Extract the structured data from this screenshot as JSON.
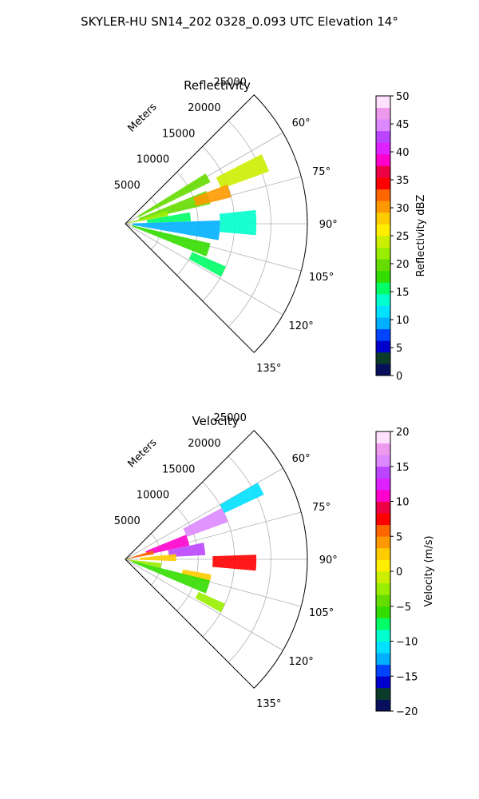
{
  "figure": {
    "title": "SKYLER-HU  SN14_202  0328_0.093 UTC Elevation 14°"
  },
  "chart_data": [
    {
      "type": "heatmap",
      "projection": "polar-sector",
      "title": "Reflectivity",
      "radial_axis_label": "Meters",
      "radial_ticks": [
        5000,
        10000,
        15000,
        20000,
        25000
      ],
      "radial_tick_labels": [
        "5000",
        "10000",
        "15000",
        "20000",
        "25000"
      ],
      "r_max": 25000,
      "azimuth_range_deg": [
        45,
        135
      ],
      "azimuth_ticks": [
        60,
        75,
        90,
        105,
        120,
        135
      ],
      "azimuth_tick_labels": [
        "60°",
        "75°",
        "90°",
        "105°",
        "120°",
        "135°"
      ],
      "grid": true,
      "colorbar": {
        "label": "Reflectivity dBZ",
        "range": [
          0,
          50
        ],
        "ticks": [
          0,
          5,
          10,
          15,
          20,
          25,
          30,
          35,
          40,
          45,
          50
        ],
        "tick_labels": [
          "0",
          "5",
          "10",
          "15",
          "20",
          "25",
          "30",
          "35",
          "40",
          "45",
          "50"
        ],
        "levels": 40
      },
      "echo_regions": [
        {
          "az_range": [
            58,
            64
          ],
          "r_range": [
            2000,
            13000
          ],
          "value": 20
        },
        {
          "az_range": [
            63,
            70
          ],
          "r_range": [
            14000,
            21000
          ],
          "value": 24
        },
        {
          "az_range": [
            68,
            77
          ],
          "r_range": [
            2000,
            12000
          ],
          "value": 19
        },
        {
          "az_range": [
            69,
            76
          ],
          "r_range": [
            10000,
            15000
          ],
          "value": 30
        },
        {
          "az_range": [
            73,
            80
          ],
          "r_range": [
            0,
            6000
          ],
          "value": 22
        },
        {
          "az_range": [
            80,
            88
          ],
          "r_range": [
            3000,
            9000
          ],
          "value": 16
        },
        {
          "az_range": [
            84,
            95
          ],
          "r_range": [
            13000,
            18000
          ],
          "value": 14
        },
        {
          "az_range": [
            88,
            100
          ],
          "r_range": [
            1000,
            13000
          ],
          "value": 10
        },
        {
          "az_range": [
            103,
            112
          ],
          "r_range": [
            1000,
            12000
          ],
          "value": 17
        },
        {
          "az_range": [
            113,
            119
          ],
          "r_range": [
            10000,
            15000
          ],
          "value": 16
        }
      ]
    },
    {
      "type": "heatmap",
      "projection": "polar-sector",
      "title": "Velocity",
      "radial_axis_label": "Meters",
      "radial_ticks": [
        5000,
        10000,
        15000,
        20000,
        25000
      ],
      "radial_tick_labels": [
        "5000",
        "10000",
        "15000",
        "20000",
        "25000"
      ],
      "r_max": 25000,
      "azimuth_range_deg": [
        45,
        135
      ],
      "azimuth_ticks": [
        60,
        75,
        90,
        105,
        120,
        135
      ],
      "azimuth_tick_labels": [
        "60°",
        "75°",
        "90°",
        "105°",
        "120°",
        "135°"
      ],
      "grid": true,
      "colorbar": {
        "label": "Velocity (m/s)",
        "range": [
          -20,
          20
        ],
        "ticks": [
          -20,
          -15,
          -10,
          -5,
          0,
          5,
          10,
          15,
          20
        ],
        "tick_labels": [
          "−20",
          "−15",
          "−10",
          "−5",
          "0",
          "5",
          "10",
          "15",
          "20"
        ],
        "levels": 40
      },
      "echo_regions": [
        {
          "az_range": [
            60,
            65
          ],
          "r_range": [
            15000,
            21000
          ],
          "value": -11
        },
        {
          "az_range": [
            62,
            70
          ],
          "r_range": [
            9000,
            15000
          ],
          "value": 16
        },
        {
          "az_range": [
            68,
            78
          ],
          "r_range": [
            3000,
            9000
          ],
          "value": 11
        },
        {
          "az_range": [
            72,
            80
          ],
          "r_range": [
            0,
            4000
          ],
          "value": 6
        },
        {
          "az_range": [
            78,
            87
          ],
          "r_range": [
            6000,
            11000
          ],
          "value": 14
        },
        {
          "az_range": [
            84,
            92
          ],
          "r_range": [
            2000,
            7000
          ],
          "value": 2
        },
        {
          "az_range": [
            88,
            95
          ],
          "r_range": [
            12000,
            18000
          ],
          "value": 8
        },
        {
          "az_range": [
            96,
            104
          ],
          "r_range": [
            0,
            5000
          ],
          "value": -2
        },
        {
          "az_range": [
            100,
            105
          ],
          "r_range": [
            8000,
            12000
          ],
          "value": 3
        },
        {
          "az_range": [
            104,
            113
          ],
          "r_range": [
            1000,
            12000
          ],
          "value": -6
        },
        {
          "az_range": [
            114,
            119
          ],
          "r_range": [
            11000,
            15000
          ],
          "value": -3
        }
      ]
    }
  ],
  "colormaps": {
    "reflectivity": [
      "#08105e",
      "#0b3c2a",
      "#0000cc",
      "#0044ff",
      "#00b0ff",
      "#00e0ff",
      "#00ffcc",
      "#00ff66",
      "#33dd00",
      "#66dd00",
      "#99ee00",
      "#ccee00",
      "#ffee00",
      "#ffcc00",
      "#ff9900",
      "#ff6600",
      "#ff0000",
      "#ee0044",
      "#ff00cc",
      "#dd22ff",
      "#bb44ff",
      "#dd88ff",
      "#ee99ee",
      "#ffe0ff"
    ],
    "velocity": [
      "#08105e",
      "#0b3c2a",
      "#0000cc",
      "#0044ff",
      "#00b0ff",
      "#00e0ff",
      "#00ffcc",
      "#00ff66",
      "#33dd00",
      "#66dd00",
      "#99ee00",
      "#ccee00",
      "#ffee00",
      "#ffcc00",
      "#ff9900",
      "#ff6600",
      "#ff0000",
      "#ee0044",
      "#ff00cc",
      "#dd22ff",
      "#bb44ff",
      "#dd88ff",
      "#ee99ee",
      "#ffe0ff"
    ]
  }
}
